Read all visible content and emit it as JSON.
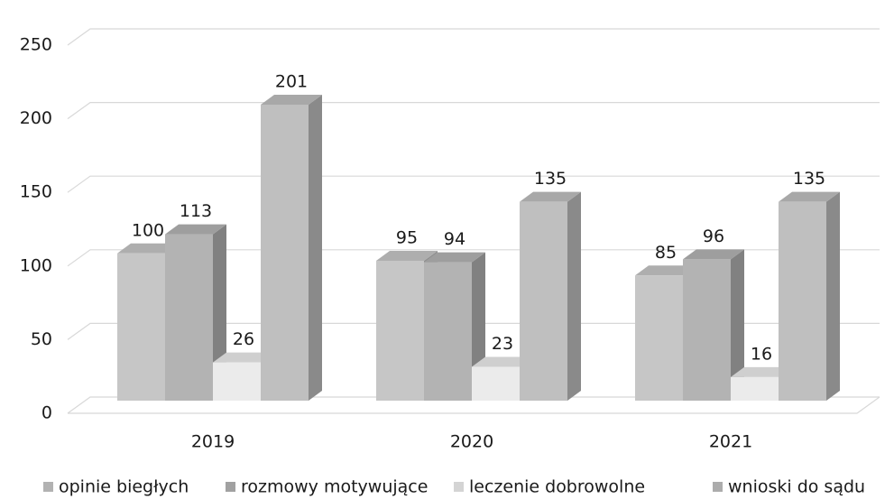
{
  "chart_data": {
    "type": "bar3d",
    "categories": [
      "2019",
      "2020",
      "2021"
    ],
    "series": [
      {
        "name": "opinie biegłych",
        "color": "#c6c6c6",
        "values": [
          100,
          95,
          85
        ]
      },
      {
        "name": "rozmowy motywujące",
        "color": "#b3b3b3",
        "values": [
          113,
          94,
          96
        ]
      },
      {
        "name": "leczenie dobrowolne",
        "color": "#ebebeb",
        "values": [
          26,
          23,
          16
        ]
      },
      {
        "name": "wnioski do sądu",
        "color": "#bfbfbf",
        "values": [
          201,
          135,
          135
        ]
      }
    ],
    "ylim": [
      0,
      250
    ],
    "yticks": [
      0,
      50,
      100,
      150,
      200,
      250
    ],
    "grid": true,
    "legend": "bottom"
  }
}
